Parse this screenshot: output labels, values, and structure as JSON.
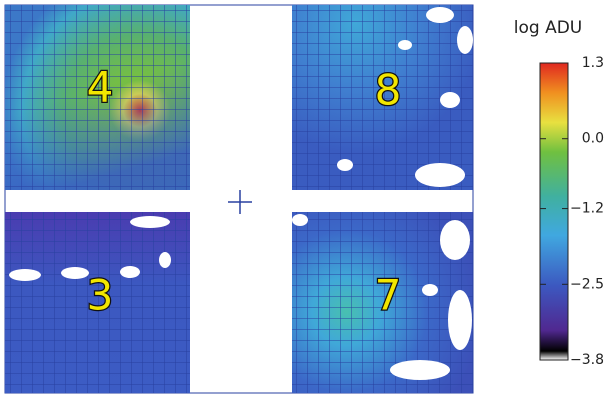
{
  "chart_data": {
    "type": "heatmap",
    "colorbar_label": "log ADU",
    "zlim": [
      -3.8,
      1.3
    ],
    "zticks": [
      1.3,
      {
        "value": 0,
        "label": "0.0"
      },
      {
        "value": -1.2,
        "label": "−1.2"
      },
      {
        "value": -2.5,
        "label": "−2.5"
      },
      {
        "value": -3.8,
        "label": "−3.8"
      }
    ],
    "panels": [
      {
        "label": "4"
      },
      {
        "label": "8"
      },
      {
        "label": "3"
      },
      {
        "label": "7"
      }
    ]
  }
}
